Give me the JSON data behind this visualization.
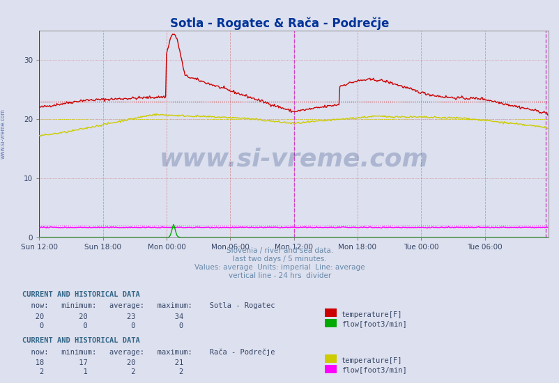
{
  "title": "Sotla - Rogatec & Rača - Podrečje",
  "title_color": "#003399",
  "background_color": "#dde0ee",
  "plot_bg_color": "#dde0ee",
  "xlabel_ticks": [
    "Sun 12:00",
    "Sun 18:00",
    "Mon 00:00",
    "Mon 06:00",
    "Mon 12:00",
    "Mon 18:00",
    "Tue 00:00",
    "Tue 06:00"
  ],
  "tick_positions": [
    0,
    72,
    144,
    216,
    288,
    360,
    432,
    504
  ],
  "total_points": 576,
  "ylim": [
    0,
    35
  ],
  "yticks": [
    0,
    10,
    20,
    30
  ],
  "vertical_line_24h": 288,
  "vertical_line_color": "#cc44cc",
  "watermark_text": "www.si-vreme.com",
  "watermark_color": "#1a3a7a",
  "watermark_alpha": 0.25,
  "subtitle_lines": [
    "Slovenia / river and sea data.",
    "last two days / 5 minutes.",
    "Values: average  Units: imperial  Line: average",
    "vertical line - 24 hrs  divider"
  ],
  "subtitle_color": "#6688aa",
  "left_label": "www.si-vreme.com",
  "left_label_color": "#4466aa",
  "sotla_temp_color": "#cc0000",
  "sotla_flow_color": "#00aa00",
  "raca_temp_color": "#cccc00",
  "raca_flow_color": "#ff00ff",
  "sotla_temp_avg": 23,
  "raca_temp_avg": 20,
  "raca_flow_avg": 2,
  "vline_color": "#cc4444",
  "hline_color": "#cc4444",
  "text_color": "#334466",
  "header_color": "#336688"
}
